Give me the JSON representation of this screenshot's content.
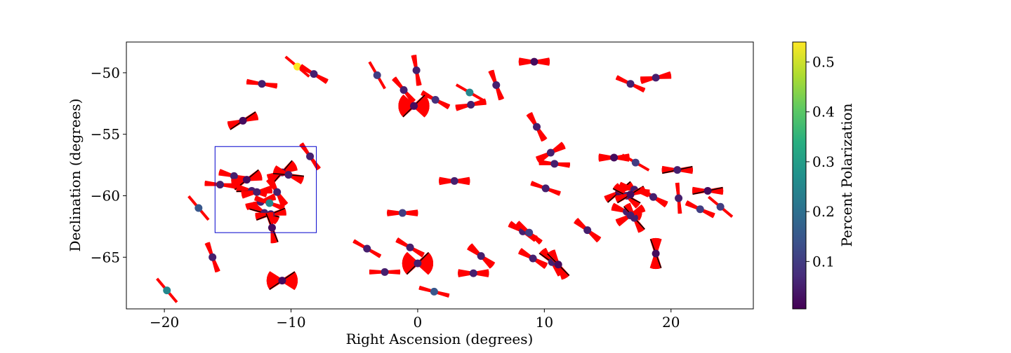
{
  "chart_data": {
    "type": "scatter",
    "xlabel": "Right Ascension (degrees)",
    "ylabel": "Declination (degrees)",
    "xlim": [
      -23,
      26.5
    ],
    "ylim": [
      -69.2,
      -47.5
    ],
    "xticks": [
      -20,
      -10,
      0,
      10,
      20
    ],
    "xtick_labels": [
      "−20",
      "−10",
      "0",
      "10",
      "20"
    ],
    "yticks": [
      -65,
      -60,
      -55,
      -50
    ],
    "ytick_labels": [
      "−65",
      "−60",
      "−55",
      "−50"
    ],
    "grid": false,
    "colorbar": {
      "label": "Percent Polarization",
      "colormap": "viridis",
      "range": [
        0.005,
        0.54
      ],
      "ticks": [
        0.1,
        0.2,
        0.3,
        0.4,
        0.5
      ],
      "tick_labels": [
        "0.1",
        "0.2",
        "0.3",
        "0.4",
        "0.5"
      ]
    },
    "highlight_box": {
      "x": [
        -16,
        -8
      ],
      "y": [
        -63,
        -56
      ],
      "color": "#0000cc"
    },
    "marker_style": {
      "line_color": "#ff0000",
      "edge_color": "#000000"
    },
    "points": [
      {
        "ra": -9.5,
        "dec": -49.5,
        "p": 0.54,
        "angles": [
          -40
        ],
        "spread": 0
      },
      {
        "ra": -8.2,
        "dec": -50.1,
        "p": 0.05,
        "angles": [
          -30
        ],
        "spread": 10
      },
      {
        "ra": -12.3,
        "dec": -50.9,
        "p": 0.05,
        "angles": [
          -8
        ],
        "spread": 10
      },
      {
        "ra": -3.2,
        "dec": -50.2,
        "p": 0.1,
        "angles": [
          -60
        ],
        "spread": 0
      },
      {
        "ra": -0.1,
        "dec": -49.8,
        "p": 0.05,
        "angles": [
          -80
        ],
        "spread": 10
      },
      {
        "ra": -1.1,
        "dec": -51.4,
        "p": 0.05,
        "angles": [
          -50
        ],
        "spread": 10
      },
      {
        "ra": 1.4,
        "dec": -52.2,
        "p": 0.08,
        "angles": [
          -28
        ],
        "spread": 10
      },
      {
        "ra": -0.3,
        "dec": -52.7,
        "p": 0.02,
        "angles": [
          0
        ],
        "spread": 90
      },
      {
        "ra": 4.1,
        "dec": -51.6,
        "p": 0.25,
        "angles": [
          -30
        ],
        "spread": 0
      },
      {
        "ra": 4.2,
        "dec": -52.6,
        "p": 0.05,
        "angles": [
          12
        ],
        "spread": 14
      },
      {
        "ra": 6.2,
        "dec": -51.0,
        "p": 0.05,
        "angles": [
          -70
        ],
        "spread": 12
      },
      {
        "ra": 9.2,
        "dec": -49.1,
        "p": 0.02,
        "angles": [
          0
        ],
        "spread": 20
      },
      {
        "ra": 16.8,
        "dec": -50.9,
        "p": 0.05,
        "angles": [
          -25
        ],
        "spread": 8
      },
      {
        "ra": 18.8,
        "dec": -50.4,
        "p": 0.05,
        "angles": [
          10
        ],
        "spread": 18
      },
      {
        "ra": -13.8,
        "dec": -53.9,
        "p": 0.02,
        "angles": [
          20
        ],
        "spread": 30
      },
      {
        "ra": 9.4,
        "dec": -54.4,
        "p": 0.05,
        "angles": [
          -60
        ],
        "spread": 15
      },
      {
        "ra": 10.5,
        "dec": -56.5,
        "p": 0.05,
        "angles": [
          30
        ],
        "spread": 20
      },
      {
        "ra": 10.8,
        "dec": -57.4,
        "p": 0.05,
        "angles": [
          -5
        ],
        "spread": 10
      },
      {
        "ra": 15.5,
        "dec": -56.9,
        "p": 0.02,
        "angles": [
          0
        ],
        "spread": 20
      },
      {
        "ra": 17.2,
        "dec": -57.3,
        "p": 0.1,
        "angles": [
          -30
        ],
        "spread": 0
      },
      {
        "ra": 20.5,
        "dec": -57.9,
        "p": 0.05,
        "angles": [
          0
        ],
        "spread": 25
      },
      {
        "ra": -8.5,
        "dec": -56.8,
        "p": 0.05,
        "angles": [
          -55
        ],
        "spread": 8
      },
      {
        "ra": -10.7,
        "dec": -58.1,
        "p": 0.02,
        "angles": [
          30
        ],
        "spread": 40
      },
      {
        "ra": -10.2,
        "dec": -58.3,
        "p": 0.05,
        "angles": [
          -20
        ],
        "spread": 30
      },
      {
        "ra": -14.5,
        "dec": -58.4,
        "p": 0.05,
        "angles": [
          -15
        ],
        "spread": 15
      },
      {
        "ra": -15.6,
        "dec": -59.1,
        "p": 0.05,
        "angles": [
          -5
        ],
        "spread": 10
      },
      {
        "ra": -13.5,
        "dec": -58.7,
        "p": 0.02,
        "angles": [
          20
        ],
        "spread": 40
      },
      {
        "ra": -13.1,
        "dec": -59.6,
        "p": 0.05,
        "angles": [
          -10
        ],
        "spread": 25
      },
      {
        "ra": -12.7,
        "dec": -59.7,
        "p": 0.05,
        "angles": [
          10
        ],
        "spread": 20
      },
      {
        "ra": -11.1,
        "dec": -59.7,
        "p": 0.05,
        "angles": [
          -60
        ],
        "spread": 20
      },
      {
        "ra": -12.4,
        "dec": -60.5,
        "p": 0.05,
        "angles": [
          20
        ],
        "spread": 15
      },
      {
        "ra": -11.7,
        "dec": -60.6,
        "p": 0.25,
        "angles": [
          -20
        ],
        "spread": 10
      },
      {
        "ra": -12.1,
        "dec": -61.4,
        "p": 0.05,
        "angles": [
          -30
        ],
        "spread": 30
      },
      {
        "ra": -11.6,
        "dec": -61.5,
        "p": 0.05,
        "angles": [
          10
        ],
        "spread": 25
      },
      {
        "ra": -11.5,
        "dec": -62.6,
        "p": 0.02,
        "angles": [
          -80
        ],
        "spread": 25
      },
      {
        "ra": -17.3,
        "dec": -61.0,
        "p": 0.15,
        "angles": [
          -50
        ],
        "spread": 0
      },
      {
        "ra": 2.9,
        "dec": -58.8,
        "p": 0.05,
        "angles": [
          0
        ],
        "spread": 20
      },
      {
        "ra": 10.1,
        "dec": -59.4,
        "p": 0.05,
        "angles": [
          -20
        ],
        "spread": 8
      },
      {
        "ra": 15.9,
        "dec": -59.7,
        "p": 0.02,
        "angles": [
          30
        ],
        "spread": 25
      },
      {
        "ra": 17.1,
        "dec": -59.5,
        "p": 0.05,
        "angles": [
          -15
        ],
        "spread": 20
      },
      {
        "ra": 16.5,
        "dec": -60.0,
        "p": 0.05,
        "angles": [
          -40
        ],
        "spread": 25
      },
      {
        "ra": 16.8,
        "dec": -59.9,
        "p": 0.02,
        "angles": [
          20
        ],
        "spread": 25
      },
      {
        "ra": 18.6,
        "dec": -60.1,
        "p": 0.05,
        "angles": [
          -30
        ],
        "spread": 15
      },
      {
        "ra": 20.6,
        "dec": -60.2,
        "p": 0.05,
        "angles": [
          -85
        ],
        "spread": 5
      },
      {
        "ra": 22.9,
        "dec": -59.6,
        "p": 0.02,
        "angles": [
          0
        ],
        "spread": 25
      },
      {
        "ra": 22.3,
        "dec": -61.1,
        "p": 0.1,
        "angles": [
          -25
        ],
        "spread": 10
      },
      {
        "ra": 23.9,
        "dec": -60.9,
        "p": 0.1,
        "angles": [
          -40
        ],
        "spread": 0
      },
      {
        "ra": 16.5,
        "dec": -61.3,
        "p": 0.05,
        "angles": [
          -20
        ],
        "spread": 20
      },
      {
        "ra": 17.1,
        "dec": -61.8,
        "p": 0.05,
        "angles": [
          -60
        ],
        "spread": 25
      },
      {
        "ra": 16.8,
        "dec": -61.6,
        "p": 0.05,
        "angles": [
          30
        ],
        "spread": 20
      },
      {
        "ra": -1.2,
        "dec": -61.4,
        "p": 0.1,
        "angles": [
          0
        ],
        "spread": 15
      },
      {
        "ra": 8.3,
        "dec": -62.9,
        "p": 0.05,
        "angles": [
          -30
        ],
        "spread": 15
      },
      {
        "ra": 8.8,
        "dec": -63.0,
        "p": 0.1,
        "angles": [
          -40
        ],
        "spread": 10
      },
      {
        "ra": 13.4,
        "dec": -62.8,
        "p": 0.05,
        "angles": [
          -40
        ],
        "spread": 15
      },
      {
        "ra": -4.0,
        "dec": -64.3,
        "p": 0.05,
        "angles": [
          -30
        ],
        "spread": 5
      },
      {
        "ra": -0.6,
        "dec": -64.2,
        "p": 0.05,
        "angles": [
          -30
        ],
        "spread": 10
      },
      {
        "ra": 0.0,
        "dec": -65.5,
        "p": 0.05,
        "angles": [
          0
        ],
        "spread": 90
      },
      {
        "ra": 5.0,
        "dec": -64.9,
        "p": 0.05,
        "angles": [
          -40
        ],
        "spread": 20
      },
      {
        "ra": 9.1,
        "dec": -65.1,
        "p": 0.05,
        "angles": [
          -30
        ],
        "spread": 15
      },
      {
        "ra": 10.6,
        "dec": -65.4,
        "p": 0.05,
        "angles": [
          -50
        ],
        "spread": 30
      },
      {
        "ra": 11.1,
        "dec": -65.6,
        "p": 0.02,
        "angles": [
          -60
        ],
        "spread": 30
      },
      {
        "ra": 18.8,
        "dec": -64.7,
        "p": 0.02,
        "angles": [
          90
        ],
        "spread": 40
      },
      {
        "ra": -16.2,
        "dec": -65.0,
        "p": 0.05,
        "angles": [
          -70
        ],
        "spread": 10
      },
      {
        "ra": -2.6,
        "dec": -66.2,
        "p": 0.05,
        "angles": [
          0
        ],
        "spread": 8
      },
      {
        "ra": 4.4,
        "dec": -66.3,
        "p": 0.05,
        "angles": [
          0
        ],
        "spread": 20
      },
      {
        "ra": -10.7,
        "dec": -66.9,
        "p": 0.02,
        "angles": [
          0
        ],
        "spread": 70
      },
      {
        "ra": -19.8,
        "dec": -67.7,
        "p": 0.25,
        "angles": [
          -50
        ],
        "spread": 0
      },
      {
        "ra": 1.3,
        "dec": -67.8,
        "p": 0.15,
        "angles": [
          -15
        ],
        "spread": 5
      }
    ]
  }
}
